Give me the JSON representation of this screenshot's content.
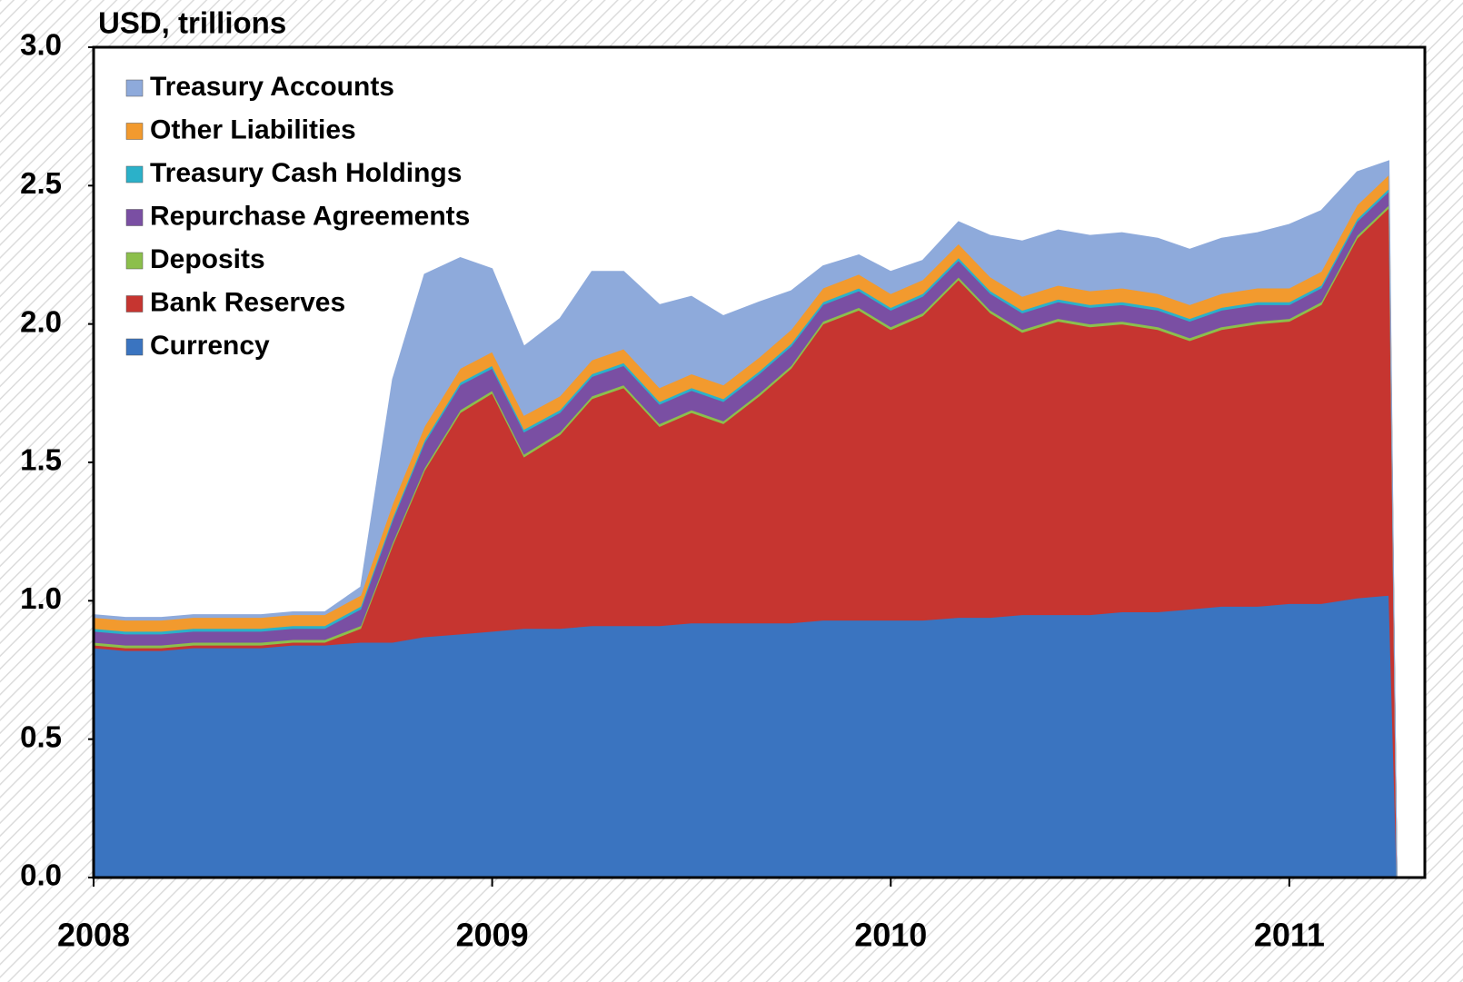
{
  "chart_data": {
    "type": "stacked_area",
    "title": "USD, trillions",
    "x": [
      2008,
      2008.08,
      2008.17,
      2008.25,
      2008.33,
      2008.42,
      2008.5,
      2008.58,
      2008.67,
      2008.75,
      2008.83,
      2008.92,
      2009,
      2009.08,
      2009.17,
      2009.25,
      2009.33,
      2009.42,
      2009.5,
      2009.58,
      2009.67,
      2009.75,
      2009.83,
      2009.92,
      2010,
      2010.08,
      2010.17,
      2010.25,
      2010.33,
      2010.42,
      2010.5,
      2010.58,
      2010.67,
      2010.75,
      2010.83,
      2010.92,
      2011,
      2011.08,
      2011.17,
      2011.25,
      2011.27
    ],
    "series": [
      {
        "name": "Currency",
        "color": "#3a74c0",
        "values": [
          0.83,
          0.82,
          0.82,
          0.83,
          0.83,
          0.83,
          0.84,
          0.84,
          0.85,
          0.85,
          0.87,
          0.88,
          0.89,
          0.9,
          0.9,
          0.91,
          0.91,
          0.91,
          0.92,
          0.92,
          0.92,
          0.92,
          0.93,
          0.93,
          0.93,
          0.93,
          0.94,
          0.94,
          0.95,
          0.95,
          0.95,
          0.96,
          0.96,
          0.97,
          0.98,
          0.98,
          0.99,
          0.99,
          1.01,
          1.02,
          0
        ]
      },
      {
        "name": "Bank Reserves",
        "color": "#c63530",
        "values": [
          0.01,
          0.01,
          0.01,
          0.01,
          0.01,
          0.01,
          0.01,
          0.01,
          0.05,
          0.35,
          0.6,
          0.8,
          0.86,
          0.62,
          0.7,
          0.82,
          0.86,
          0.72,
          0.76,
          0.72,
          0.82,
          0.92,
          1.07,
          1.12,
          1.05,
          1.1,
          1.22,
          1.1,
          1.02,
          1.06,
          1.04,
          1.04,
          1.02,
          0.97,
          1.0,
          1.02,
          1.02,
          1.08,
          1.3,
          1.4,
          0
        ]
      },
      {
        "name": "Deposits",
        "color": "#8cbf4c",
        "values": [
          0.01,
          0.01,
          0.01,
          0.01,
          0.01,
          0.01,
          0.01,
          0.01,
          0.01,
          0.01,
          0.01,
          0.01,
          0.01,
          0.01,
          0.01,
          0.01,
          0.01,
          0.01,
          0.01,
          0.01,
          0.01,
          0.01,
          0.01,
          0.01,
          0.01,
          0.01,
          0.01,
          0.01,
          0.01,
          0.01,
          0.01,
          0.01,
          0.01,
          0.01,
          0.01,
          0.01,
          0.01,
          0.01,
          0.01,
          0.01,
          0
        ]
      },
      {
        "name": "Repurchase Agreements",
        "color": "#7a4fa3",
        "values": [
          0.04,
          0.04,
          0.04,
          0.04,
          0.04,
          0.04,
          0.04,
          0.04,
          0.06,
          0.08,
          0.09,
          0.09,
          0.08,
          0.08,
          0.07,
          0.07,
          0.07,
          0.07,
          0.07,
          0.07,
          0.07,
          0.07,
          0.06,
          0.06,
          0.06,
          0.06,
          0.06,
          0.06,
          0.06,
          0.06,
          0.06,
          0.06,
          0.06,
          0.06,
          0.06,
          0.06,
          0.05,
          0.05,
          0.05,
          0.05,
          0
        ]
      },
      {
        "name": "Treasury Cash Holdings",
        "color": "#2bb1c9",
        "values": [
          0.01,
          0.01,
          0.01,
          0.01,
          0.01,
          0.01,
          0.01,
          0.01,
          0.01,
          0.01,
          0.01,
          0.01,
          0.01,
          0.01,
          0.01,
          0.01,
          0.01,
          0.01,
          0.01,
          0.01,
          0.01,
          0.01,
          0.01,
          0.01,
          0.01,
          0.01,
          0.01,
          0.01,
          0.01,
          0.01,
          0.01,
          0.01,
          0.01,
          0.01,
          0.01,
          0.01,
          0.01,
          0.01,
          0.01,
          0.01,
          0
        ]
      },
      {
        "name": "Other Liabilities",
        "color": "#f29a2e",
        "values": [
          0.04,
          0.04,
          0.04,
          0.04,
          0.04,
          0.04,
          0.04,
          0.04,
          0.04,
          0.05,
          0.05,
          0.05,
          0.05,
          0.05,
          0.05,
          0.05,
          0.05,
          0.05,
          0.05,
          0.05,
          0.05,
          0.05,
          0.05,
          0.05,
          0.05,
          0.05,
          0.05,
          0.05,
          0.05,
          0.05,
          0.05,
          0.05,
          0.05,
          0.05,
          0.05,
          0.05,
          0.05,
          0.05,
          0.05,
          0.05,
          0
        ]
      },
      {
        "name": "Treasury Accounts",
        "color": "#8eaadb",
        "values": [
          0.01,
          0.01,
          0.01,
          0.01,
          0.01,
          0.01,
          0.01,
          0.01,
          0.03,
          0.45,
          0.55,
          0.4,
          0.3,
          0.25,
          0.28,
          0.32,
          0.28,
          0.3,
          0.28,
          0.25,
          0.2,
          0.14,
          0.08,
          0.07,
          0.08,
          0.07,
          0.08,
          0.15,
          0.2,
          0.2,
          0.2,
          0.2,
          0.2,
          0.2,
          0.2,
          0.2,
          0.23,
          0.22,
          0.12,
          0.05,
          0
        ]
      }
    ],
    "xlim": [
      2008,
      2011.34
    ],
    "xticks": [
      2008,
      2009,
      2010,
      2011
    ],
    "ylim": [
      0,
      3
    ],
    "yticks": [
      {
        "value": 0,
        "label": "0.0"
      },
      {
        "value": 0.5,
        "label": "0.5"
      },
      {
        "value": 1,
        "label": "1.0"
      },
      {
        "value": 1.5,
        "label": "1.5"
      },
      {
        "value": 2,
        "label": "2.0"
      },
      {
        "value": 2.5,
        "label": "2.5"
      },
      {
        "value": 3,
        "label": "3.0"
      }
    ],
    "legend": "upper left"
  }
}
